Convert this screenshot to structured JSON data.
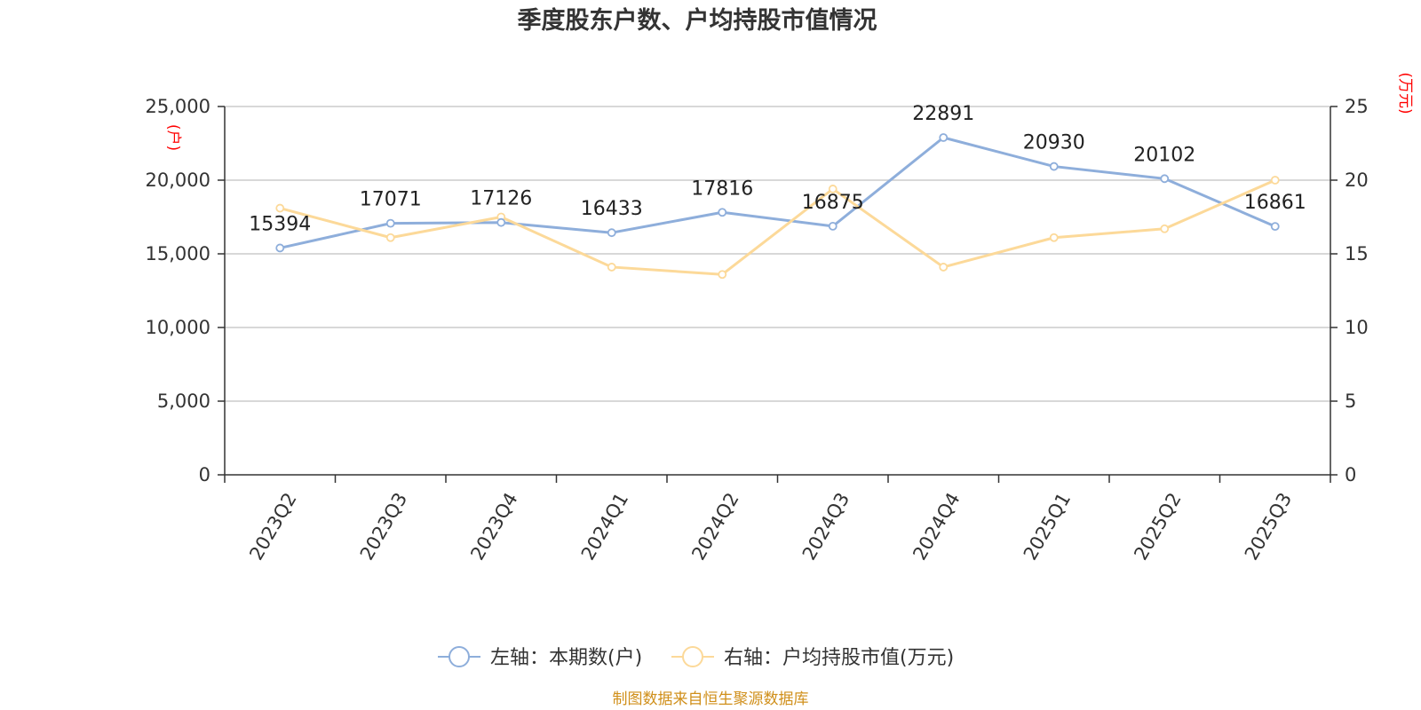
{
  "title": "季度股东户数、户均持股市值情况",
  "source": "制图数据来自恒生聚源数据库",
  "colors": {
    "left_series": "#8eaedb",
    "right_series": "#fcd999",
    "unit": "#ff0000",
    "source": "#d08f1a"
  },
  "chart_data": {
    "type": "line",
    "title": "季度股东户数、户均持股市值情况",
    "categories": [
      "2023Q2",
      "2023Q3",
      "2023Q4",
      "2024Q1",
      "2024Q2",
      "2024Q3",
      "2024Q4",
      "2025Q1",
      "2025Q2",
      "2025Q3"
    ],
    "left_axis": {
      "unit": "(户)",
      "range": [
        0,
        25000
      ],
      "ticks": [
        "0",
        "5,000",
        "10,000",
        "15,000",
        "20,000",
        "25,000"
      ],
      "tick_values": [
        0,
        5000,
        10000,
        15000,
        20000,
        25000
      ]
    },
    "right_axis": {
      "unit": "(万元)",
      "range": [
        0,
        25
      ],
      "ticks": [
        "0",
        "5",
        "10",
        "15",
        "20",
        "25"
      ],
      "tick_values": [
        0,
        5,
        10,
        15,
        20,
        25
      ]
    },
    "grid": true,
    "legend_position": "bottom",
    "series": [
      {
        "name": "左轴：本期数(户)",
        "axis": "left",
        "values": [
          15394,
          17071,
          17126,
          16433,
          17816,
          16875,
          22891,
          20930,
          20102,
          16861
        ],
        "labels": [
          "15394",
          "17071",
          "17126",
          "16433",
          "17816",
          "16875",
          "22891",
          "20930",
          "20102",
          "16861"
        ]
      },
      {
        "name": "右轴：户均持股市值(万元)",
        "axis": "right",
        "values": [
          18.1,
          16.1,
          17.5,
          14.1,
          13.6,
          19.4,
          14.1,
          16.1,
          16.7,
          20.0
        ]
      }
    ]
  }
}
